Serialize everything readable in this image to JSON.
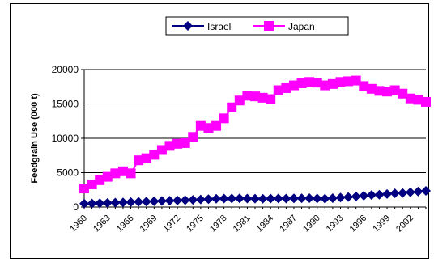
{
  "chart_data": {
    "type": "line",
    "title": "",
    "xlabel": "",
    "ylabel": "Feedgrain Use (000 t)",
    "x_tick_labels": [
      "1960",
      "1963",
      "1966",
      "1969",
      "1972",
      "1975",
      "1978",
      "1981",
      "1984",
      "1987",
      "1990",
      "1993",
      "1996",
      "1999",
      "2002"
    ],
    "x": [
      1960,
      1961,
      1962,
      1963,
      1964,
      1965,
      1966,
      1967,
      1968,
      1969,
      1970,
      1971,
      1972,
      1973,
      1974,
      1975,
      1976,
      1977,
      1978,
      1979,
      1980,
      1981,
      1982,
      1983,
      1984,
      1985,
      1986,
      1987,
      1988,
      1989,
      1990,
      1991,
      1992,
      1993,
      1994,
      1995,
      1996,
      1997,
      1998,
      1999,
      2000,
      2001,
      2002,
      2003,
      2004
    ],
    "ylim": [
      0,
      20000
    ],
    "y_ticks": [
      0,
      5000,
      10000,
      15000,
      20000
    ],
    "grid": "horizontal",
    "legend_position": "top",
    "series": [
      {
        "name": "Israel",
        "color": "#000080",
        "marker": "diamond",
        "values": [
          500,
          520,
          560,
          600,
          640,
          680,
          720,
          760,
          800,
          840,
          880,
          920,
          960,
          1000,
          1050,
          1100,
          1150,
          1200,
          1230,
          1250,
          1260,
          1240,
          1220,
          1200,
          1230,
          1250,
          1240,
          1260,
          1280,
          1300,
          1250,
          1220,
          1300,
          1380,
          1450,
          1550,
          1650,
          1750,
          1800,
          1900,
          2000,
          2050,
          2150,
          2250,
          2350
        ]
      },
      {
        "name": "Japan",
        "color": "#ff00ff",
        "marker": "square",
        "values": [
          2700,
          3300,
          3900,
          4400,
          4900,
          5200,
          4900,
          6800,
          7100,
          7600,
          8300,
          8900,
          9200,
          9300,
          10200,
          11800,
          11500,
          11800,
          12900,
          14500,
          15500,
          16200,
          16100,
          15900,
          15700,
          17000,
          17300,
          17700,
          18000,
          18200,
          18100,
          17700,
          17900,
          18200,
          18300,
          18400,
          17600,
          17200,
          16900,
          16800,
          17000,
          16500,
          15800,
          15600,
          15300
        ]
      }
    ]
  }
}
